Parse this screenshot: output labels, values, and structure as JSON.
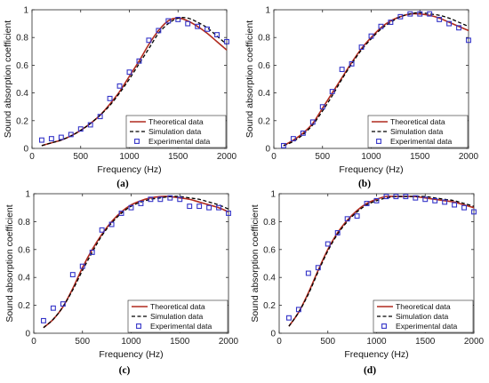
{
  "legend_labels": [
    "Theoretical data",
    "Simulation data",
    "Experimental data"
  ],
  "colors": {
    "theoretical": "#b02a1e",
    "simulation": "#000000",
    "experimental": "#3434c8"
  },
  "chart_data": [
    {
      "type": "line",
      "panel_label": "(a)",
      "xlabel": "Frequency (Hz)",
      "ylabel": "Sound absorption coefficient",
      "xlim": [
        0,
        2000
      ],
      "ylim": [
        0,
        1
      ],
      "xticks": [
        0,
        500,
        1000,
        1500,
        2000
      ],
      "yticks": [
        0,
        0.2,
        0.4,
        0.6,
        0.8,
        1
      ],
      "legend_position": "bottom-right",
      "series": [
        {
          "name": "Theoretical data",
          "style": "solid",
          "x": [
            100,
            200,
            300,
            400,
            500,
            600,
            700,
            800,
            900,
            1000,
            1100,
            1200,
            1300,
            1400,
            1500,
            1600,
            1700,
            1800,
            1900,
            2000
          ],
          "y": [
            0.02,
            0.04,
            0.06,
            0.09,
            0.13,
            0.18,
            0.24,
            0.32,
            0.41,
            0.52,
            0.63,
            0.75,
            0.85,
            0.92,
            0.94,
            0.92,
            0.88,
            0.83,
            0.77,
            0.71
          ]
        },
        {
          "name": "Simulation data",
          "style": "dashed",
          "x": [
            100,
            200,
            300,
            400,
            500,
            600,
            700,
            800,
            900,
            1000,
            1100,
            1200,
            1300,
            1400,
            1500,
            1600,
            1700,
            1800,
            1900,
            2000
          ],
          "y": [
            0.02,
            0.04,
            0.06,
            0.09,
            0.13,
            0.18,
            0.24,
            0.31,
            0.4,
            0.5,
            0.61,
            0.72,
            0.83,
            0.9,
            0.94,
            0.94,
            0.91,
            0.87,
            0.81,
            0.75
          ]
        },
        {
          "name": "Experimental data",
          "style": "marker",
          "x": [
            100,
            200,
            300,
            400,
            500,
            600,
            700,
            800,
            900,
            1000,
            1100,
            1200,
            1300,
            1400,
            1500,
            1600,
            1700,
            1800,
            1900,
            2000
          ],
          "y": [
            0.06,
            0.07,
            0.08,
            0.1,
            0.14,
            0.17,
            0.23,
            0.36,
            0.45,
            0.55,
            0.63,
            0.78,
            0.85,
            0.92,
            0.93,
            0.9,
            0.88,
            0.86,
            0.82,
            0.77
          ]
        }
      ]
    },
    {
      "type": "line",
      "panel_label": "(b)",
      "xlabel": "Frequency (Hz)",
      "ylabel": "Sound absorption coefficient",
      "xlim": [
        0,
        2000
      ],
      "ylim": [
        0,
        1
      ],
      "xticks": [
        0,
        500,
        1000,
        1500,
        2000
      ],
      "yticks": [
        0,
        0.2,
        0.4,
        0.6,
        0.8,
        1
      ],
      "legend_position": "bottom-right",
      "series": [
        {
          "name": "Theoretical data",
          "style": "solid",
          "x": [
            100,
            200,
            300,
            400,
            500,
            600,
            700,
            800,
            900,
            1000,
            1100,
            1200,
            1300,
            1400,
            1500,
            1600,
            1700,
            1800,
            1900,
            2000
          ],
          "y": [
            0.02,
            0.06,
            0.11,
            0.18,
            0.29,
            0.4,
            0.51,
            0.62,
            0.72,
            0.8,
            0.87,
            0.92,
            0.95,
            0.97,
            0.97,
            0.96,
            0.94,
            0.91,
            0.88,
            0.85
          ]
        },
        {
          "name": "Simulation data",
          "style": "dashed",
          "x": [
            100,
            200,
            300,
            400,
            500,
            600,
            700,
            800,
            900,
            1000,
            1100,
            1200,
            1300,
            1400,
            1500,
            1600,
            1700,
            1800,
            1900,
            2000
          ],
          "y": [
            0.02,
            0.05,
            0.1,
            0.17,
            0.27,
            0.38,
            0.5,
            0.61,
            0.71,
            0.79,
            0.86,
            0.91,
            0.95,
            0.97,
            0.98,
            0.97,
            0.96,
            0.94,
            0.91,
            0.88
          ]
        },
        {
          "name": "Experimental data",
          "style": "marker",
          "x": [
            100,
            200,
            300,
            400,
            500,
            600,
            700,
            800,
            900,
            1000,
            1100,
            1200,
            1300,
            1400,
            1500,
            1600,
            1700,
            1800,
            1900,
            2000
          ],
          "y": [
            0.02,
            0.07,
            0.11,
            0.19,
            0.3,
            0.41,
            0.57,
            0.61,
            0.73,
            0.81,
            0.88,
            0.91,
            0.95,
            0.97,
            0.97,
            0.97,
            0.93,
            0.9,
            0.87,
            0.78
          ]
        }
      ]
    },
    {
      "type": "line",
      "panel_label": "(c)",
      "xlabel": "Frequency (Hz)",
      "ylabel": "Sound absorption coefficient",
      "xlim": [
        0,
        2000
      ],
      "ylim": [
        0,
        1
      ],
      "xticks": [
        0,
        500,
        1000,
        1500,
        2000
      ],
      "yticks": [
        0,
        0.2,
        0.4,
        0.6,
        0.8,
        1
      ],
      "legend_position": "bottom-right",
      "series": [
        {
          "name": "Theoretical data",
          "style": "solid",
          "x": [
            100,
            200,
            300,
            400,
            500,
            600,
            700,
            800,
            900,
            1000,
            1100,
            1200,
            1300,
            1400,
            1500,
            1600,
            1700,
            1800,
            1900,
            2000
          ],
          "y": [
            0.04,
            0.1,
            0.19,
            0.32,
            0.47,
            0.6,
            0.71,
            0.8,
            0.87,
            0.92,
            0.95,
            0.97,
            0.98,
            0.98,
            0.97,
            0.96,
            0.94,
            0.92,
            0.9,
            0.87
          ]
        },
        {
          "name": "Simulation data",
          "style": "dashed",
          "x": [
            100,
            200,
            300,
            400,
            500,
            600,
            700,
            800,
            900,
            1000,
            1100,
            1200,
            1300,
            1400,
            1500,
            1600,
            1700,
            1800,
            1900,
            2000
          ],
          "y": [
            0.04,
            0.1,
            0.19,
            0.31,
            0.45,
            0.58,
            0.7,
            0.79,
            0.86,
            0.91,
            0.94,
            0.96,
            0.97,
            0.98,
            0.98,
            0.97,
            0.96,
            0.94,
            0.92,
            0.89
          ]
        },
        {
          "name": "Experimental data",
          "style": "marker",
          "x": [
            100,
            200,
            300,
            400,
            500,
            600,
            700,
            800,
            900,
            1000,
            1100,
            1200,
            1300,
            1400,
            1500,
            1600,
            1700,
            1800,
            1900,
            2000
          ],
          "y": [
            0.09,
            0.18,
            0.21,
            0.42,
            0.48,
            0.58,
            0.74,
            0.78,
            0.86,
            0.9,
            0.93,
            0.96,
            0.96,
            0.97,
            0.96,
            0.91,
            0.91,
            0.9,
            0.9,
            0.86
          ]
        }
      ]
    },
    {
      "type": "line",
      "panel_label": "(d)",
      "xlabel": "Frequency (Hz)",
      "ylabel": "Sound absorption coefficient",
      "xlim": [
        0,
        2000
      ],
      "ylim": [
        0,
        1
      ],
      "xticks": [
        0,
        500,
        1000,
        1500,
        2000
      ],
      "yticks": [
        0,
        0.2,
        0.4,
        0.6,
        0.8,
        1
      ],
      "legend_position": "bottom-right",
      "series": [
        {
          "name": "Theoretical data",
          "style": "solid",
          "x": [
            100,
            200,
            300,
            400,
            500,
            600,
            700,
            800,
            900,
            1000,
            1100,
            1200,
            1300,
            1400,
            1500,
            1600,
            1700,
            1800,
            1900,
            2000
          ],
          "y": [
            0.05,
            0.15,
            0.29,
            0.45,
            0.6,
            0.72,
            0.81,
            0.88,
            0.93,
            0.96,
            0.98,
            0.98,
            0.98,
            0.98,
            0.97,
            0.96,
            0.95,
            0.94,
            0.92,
            0.9
          ]
        },
        {
          "name": "Simulation data",
          "style": "dashed",
          "x": [
            100,
            200,
            300,
            400,
            500,
            600,
            700,
            800,
            900,
            1000,
            1100,
            1200,
            1300,
            1400,
            1500,
            1600,
            1700,
            1800,
            1900,
            2000
          ],
          "y": [
            0.05,
            0.15,
            0.28,
            0.44,
            0.59,
            0.71,
            0.8,
            0.87,
            0.92,
            0.95,
            0.97,
            0.98,
            0.98,
            0.98,
            0.98,
            0.97,
            0.96,
            0.95,
            0.93,
            0.91
          ]
        },
        {
          "name": "Experimental data",
          "style": "marker",
          "x": [
            100,
            200,
            300,
            400,
            500,
            600,
            700,
            800,
            900,
            1000,
            1100,
            1200,
            1300,
            1400,
            1500,
            1600,
            1700,
            1800,
            1900,
            2000
          ],
          "y": [
            0.11,
            0.17,
            0.43,
            0.47,
            0.64,
            0.72,
            0.82,
            0.84,
            0.93,
            0.95,
            0.98,
            0.98,
            0.98,
            0.97,
            0.96,
            0.95,
            0.94,
            0.92,
            0.9,
            0.87
          ]
        }
      ]
    }
  ]
}
